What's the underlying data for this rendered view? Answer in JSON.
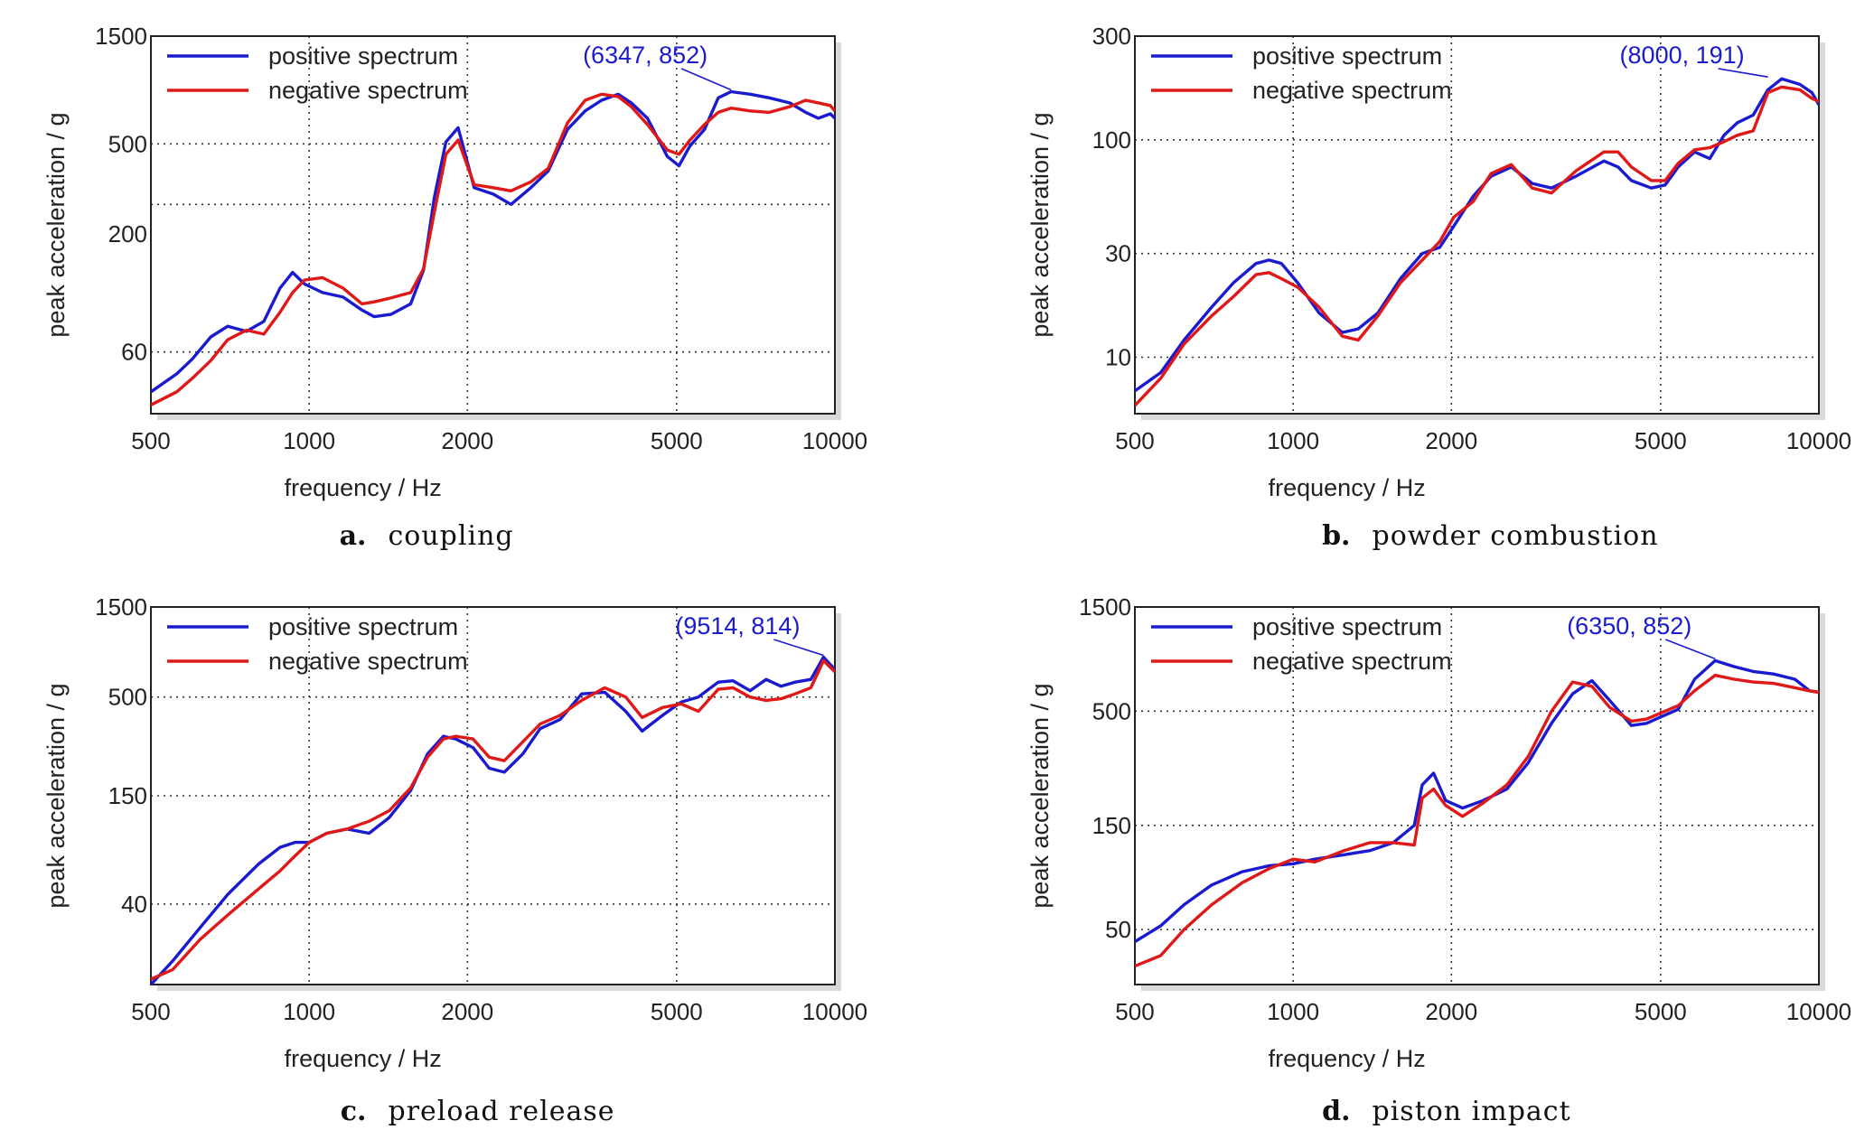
{
  "colors": {
    "positive": "#1a1ad0",
    "negative": "#e01818",
    "annotation": "#1a1ad0"
  },
  "chart_data": [
    {
      "type": "line",
      "panel_letter": "a.",
      "caption": "coupling",
      "xlabel": "frequency / Hz",
      "ylabel": "peak acceleration / g",
      "xscale": "log",
      "yscale": "log",
      "xlim": [
        500,
        10000
      ],
      "ylim": [
        32,
        1500
      ],
      "xticks": [
        500,
        1000,
        2000,
        5000,
        10000
      ],
      "xtick_labels": [
        "500",
        "1000",
        "2000",
        "5000",
        "10000"
      ],
      "yticks": [
        60,
        200,
        500,
        1500
      ],
      "ytick_labels": [
        "60",
        "200",
        "500",
        "1500"
      ],
      "y_dotted_grid": [
        60,
        270,
        500
      ],
      "legend": "top-left",
      "annotation": {
        "text": "(6347, 852)",
        "x": 6347,
        "y": 852
      },
      "series": [
        {
          "name": "positive spectrum",
          "color": "#1a1ad0",
          "x": [
            500,
            560,
            600,
            650,
            700,
            760,
            820,
            880,
            930,
            980,
            1060,
            1160,
            1260,
            1330,
            1430,
            1560,
            1650,
            1730,
            1820,
            1920,
            2060,
            2240,
            2420,
            2640,
            2850,
            3100,
            3350,
            3600,
            3870,
            4100,
            4400,
            4800,
            5050,
            5300,
            5650,
            6000,
            6347,
            6900,
            7500,
            8200,
            8800,
            9300,
            9800,
            10000
          ],
          "y": [
            40,
            48,
            56,
            70,
            78,
            74,
            82,
            115,
            135,
            120,
            110,
            105,
            92,
            86,
            88,
            98,
            138,
            290,
            510,
            590,
            320,
            300,
            270,
            320,
            380,
            580,
            700,
            780,
            830,
            760,
            650,
            440,
            400,
            490,
            580,
            800,
            852,
            830,
            800,
            760,
            690,
            650,
            680,
            650
          ]
        },
        {
          "name": "negative spectrum",
          "color": "#e01818",
          "x": [
            500,
            560,
            600,
            650,
            700,
            760,
            820,
            880,
            930,
            980,
            1060,
            1160,
            1260,
            1330,
            1430,
            1560,
            1650,
            1730,
            1820,
            1920,
            2060,
            2240,
            2420,
            2640,
            2850,
            3100,
            3350,
            3600,
            3870,
            4100,
            4400,
            4800,
            5050,
            5300,
            5650,
            6000,
            6347,
            6900,
            7500,
            8200,
            8800,
            9300,
            9800,
            10000
          ],
          "y": [
            35,
            40,
            46,
            55,
            68,
            75,
            72,
            90,
            110,
            125,
            128,
            115,
            98,
            100,
            104,
            110,
            140,
            250,
            450,
            520,
            330,
            320,
            310,
            340,
            390,
            620,
            780,
            830,
            810,
            730,
            610,
            470,
            450,
            520,
            610,
            690,
            720,
            700,
            690,
            730,
            780,
            760,
            740,
            700
          ]
        }
      ]
    },
    {
      "type": "line",
      "panel_letter": "b.",
      "caption": "powder combustion",
      "xlabel": "frequency / Hz",
      "ylabel": "peak acceleration / g",
      "xscale": "log",
      "yscale": "log",
      "xlim": [
        500,
        10000
      ],
      "ylim": [
        5.5,
        300
      ],
      "xticks": [
        500,
        1000,
        2000,
        5000,
        10000
      ],
      "xtick_labels": [
        "500",
        "1000",
        "2000",
        "5000",
        "10000"
      ],
      "yticks": [
        10,
        30,
        100,
        300
      ],
      "ytick_labels": [
        "10",
        "30",
        "100",
        "300"
      ],
      "y_dotted_grid": [
        10,
        30,
        100
      ],
      "legend": "top-left",
      "annotation": {
        "text": "(8000, 191)",
        "x": 8000,
        "y": 191
      },
      "series": [
        {
          "name": "positive spectrum",
          "color": "#1a1ad0",
          "x": [
            500,
            560,
            620,
            700,
            770,
            850,
            900,
            950,
            1020,
            1120,
            1240,
            1330,
            1450,
            1600,
            1760,
            1900,
            2020,
            2200,
            2380,
            2600,
            2850,
            3100,
            3450,
            3900,
            4150,
            4400,
            4800,
            5100,
            5400,
            5800,
            6200,
            6600,
            7000,
            7500,
            8000,
            8500,
            9200,
            9700,
            10000
          ],
          "y": [
            7,
            8.5,
            12,
            17,
            22,
            27,
            28,
            27,
            22,
            16,
            13,
            13.5,
            16,
            23,
            30,
            32,
            40,
            55,
            68,
            75,
            63,
            60,
            68,
            80,
            75,
            65,
            60,
            62,
            75,
            88,
            82,
            105,
            120,
            130,
            170,
            191,
            180,
            165,
            145
          ]
        },
        {
          "name": "negative spectrum",
          "color": "#e01818",
          "x": [
            500,
            560,
            620,
            700,
            770,
            850,
            900,
            950,
            1020,
            1120,
            1240,
            1330,
            1450,
            1600,
            1760,
            1900,
            2020,
            2200,
            2380,
            2600,
            2850,
            3100,
            3450,
            3900,
            4150,
            4400,
            4800,
            5100,
            5400,
            5800,
            6200,
            6600,
            7000,
            7500,
            8000,
            8500,
            9200,
            9700,
            10000
          ],
          "y": [
            6,
            8,
            11.5,
            15.5,
            19,
            24,
            24.5,
            23,
            21,
            17,
            12.5,
            12,
            15.5,
            22,
            28,
            34,
            44,
            52,
            70,
            77,
            60,
            57,
            72,
            88,
            88,
            75,
            65,
            65,
            78,
            90,
            92,
            98,
            105,
            110,
            165,
            175,
            170,
            155,
            150
          ]
        }
      ]
    },
    {
      "type": "line",
      "panel_letter": "c.",
      "caption": "preload release",
      "xlabel": "frequency / Hz",
      "ylabel": "peak acceleration / g",
      "xscale": "log",
      "yscale": "log",
      "xlim": [
        500,
        10000
      ],
      "ylim": [
        15,
        1500
      ],
      "xticks": [
        500,
        1000,
        2000,
        5000,
        10000
      ],
      "xtick_labels": [
        "500",
        "1000",
        "2000",
        "5000",
        "10000"
      ],
      "yticks": [
        40,
        150,
        500,
        1500
      ],
      "ytick_labels": [
        "40",
        "150",
        "500",
        "1500"
      ],
      "y_dotted_grid": [
        40,
        150,
        500
      ],
      "legend": "top-left",
      "annotation": {
        "text": "(9514, 814)",
        "x": 9514,
        "y": 814
      },
      "series": [
        {
          "name": "positive spectrum",
          "color": "#1a1ad0",
          "x": [
            500,
            550,
            620,
            700,
            800,
            880,
            940,
            1000,
            1080,
            1180,
            1300,
            1420,
            1560,
            1680,
            1800,
            1900,
            2050,
            2200,
            2350,
            2550,
            2750,
            3000,
            3300,
            3650,
            4000,
            4300,
            4700,
            5100,
            5500,
            6000,
            6400,
            6900,
            7400,
            7900,
            8400,
            9000,
            9514,
            10000
          ],
          "y": [
            15,
            20,
            30,
            45,
            65,
            80,
            85,
            85,
            95,
            100,
            95,
            115,
            160,
            250,
            310,
            300,
            270,
            210,
            200,
            250,
            340,
            380,
            520,
            530,
            420,
            330,
            400,
            470,
            500,
            600,
            610,
            540,
            620,
            570,
            600,
            620,
            814,
            700
          ]
        },
        {
          "name": "negative spectrum",
          "color": "#e01818",
          "x": [
            500,
            550,
            620,
            700,
            800,
            880,
            940,
            1000,
            1080,
            1180,
            1300,
            1420,
            1560,
            1680,
            1800,
            1900,
            2050,
            2200,
            2350,
            2550,
            2750,
            3000,
            3300,
            3650,
            4000,
            4300,
            4700,
            5100,
            5500,
            6000,
            6400,
            6900,
            7400,
            7900,
            8400,
            9000,
            9514,
            10000
          ],
          "y": [
            16,
            18,
            26,
            35,
            48,
            60,
            72,
            85,
            95,
            100,
            110,
            125,
            165,
            240,
            300,
            310,
            300,
            240,
            230,
            290,
            360,
            400,
            480,
            560,
            500,
            390,
            440,
            460,
            420,
            550,
            560,
            500,
            480,
            490,
            520,
            560,
            780,
            680
          ]
        }
      ]
    },
    {
      "type": "line",
      "panel_letter": "d.",
      "caption": "piston impact",
      "xlabel": "frequency / Hz",
      "ylabel": "peak acceleration / g",
      "xscale": "log",
      "yscale": "log",
      "xlim": [
        500,
        10000
      ],
      "ylim": [
        28,
        1500
      ],
      "xticks": [
        500,
        1000,
        2000,
        5000,
        10000
      ],
      "xtick_labels": [
        "500",
        "1000",
        "2000",
        "5000",
        "10000"
      ],
      "yticks": [
        50,
        150,
        500,
        1500
      ],
      "ytick_labels": [
        "50",
        "150",
        "500",
        "1500"
      ],
      "y_dotted_grid": [
        50,
        150,
        500
      ],
      "legend": "top-left",
      "annotation": {
        "text": "(6350, 852)",
        "x": 6350,
        "y": 852
      },
      "series": [
        {
          "name": "positive spectrum",
          "color": "#1a1ad0",
          "x": [
            500,
            560,
            620,
            700,
            800,
            900,
            1000,
            1100,
            1250,
            1400,
            1550,
            1700,
            1760,
            1850,
            1950,
            2100,
            2300,
            2550,
            2800,
            3100,
            3400,
            3700,
            4000,
            4400,
            4700,
            5000,
            5400,
            5800,
            6350,
            6900,
            7500,
            8200,
            9000,
            9600,
            10000
          ],
          "y": [
            44,
            52,
            65,
            80,
            92,
            98,
            100,
            105,
            110,
            115,
            125,
            150,
            230,
            260,
            195,
            180,
            195,
            220,
            290,
            440,
            600,
            690,
            560,
            430,
            440,
            470,
            510,
            700,
            852,
            800,
            760,
            740,
            700,
            620,
            610
          ]
        },
        {
          "name": "negative spectrum",
          "color": "#e01818",
          "x": [
            500,
            560,
            620,
            700,
            800,
            900,
            1000,
            1100,
            1250,
            1400,
            1550,
            1700,
            1760,
            1850,
            1950,
            2100,
            2300,
            2550,
            2800,
            3100,
            3400,
            3700,
            4000,
            4400,
            4700,
            5000,
            5400,
            5800,
            6350,
            6900,
            7500,
            8200,
            9000,
            9600,
            10000
          ],
          "y": [
            34,
            38,
            50,
            65,
            82,
            95,
            105,
            102,
            115,
            125,
            125,
            122,
            200,
            220,
            185,
            165,
            190,
            230,
            310,
            500,
            680,
            650,
            520,
            450,
            460,
            490,
            530,
            620,
            730,
            700,
            680,
            670,
            640,
            620,
            610
          ]
        }
      ]
    }
  ]
}
